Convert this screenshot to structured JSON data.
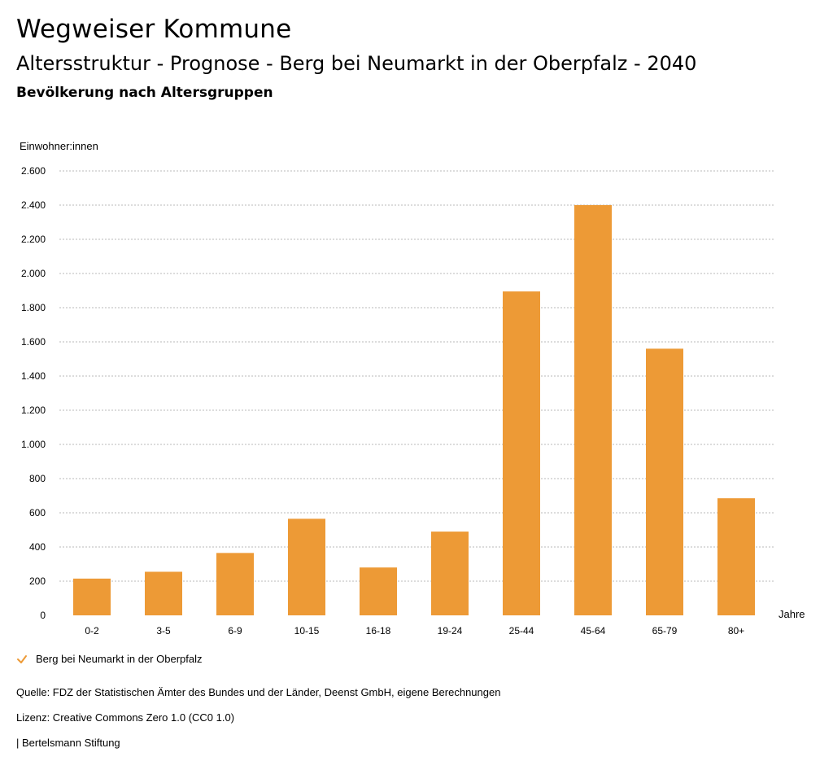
{
  "header": {
    "title": "Wegweiser Kommune",
    "subtitle": "Altersstruktur - Prognose - Berg bei Neumarkt in der Oberpfalz - 2040",
    "section": "Bevölkerung nach Altersgruppen"
  },
  "legend": {
    "label": "Berg bei Neumarkt in der Oberpfalz"
  },
  "footer": {
    "source": "Quelle: FDZ der Statistischen Ämter des Bundes und der Länder, Deenst GmbH, eigene Berechnungen",
    "license": "Lizenz: Creative Commons Zero 1.0 (CC0 1.0)",
    "publisher": "| Bertelsmann Stiftung"
  },
  "colors": {
    "bar": "#ed9a36",
    "grid": "#b8b8b8",
    "check": "#ed9a36"
  },
  "chart_data": {
    "type": "bar",
    "ylabel": "Einwohner:innen",
    "xlabel": "Jahre",
    "ylim": [
      0,
      2600
    ],
    "yticks": [
      0,
      200,
      400,
      600,
      800,
      1000,
      1200,
      1400,
      1600,
      1800,
      2000,
      2200,
      2400,
      2600
    ],
    "ytick_labels": [
      "0",
      "200",
      "400",
      "600",
      "800",
      "1.000",
      "1.200",
      "1.400",
      "1.600",
      "1.800",
      "2.000",
      "2.200",
      "2.400",
      "2.600"
    ],
    "grid": true,
    "categories": [
      "0-2",
      "3-5",
      "6-9",
      "10-15",
      "16-18",
      "19-24",
      "25-44",
      "45-64",
      "65-79",
      "80+"
    ],
    "series": [
      {
        "name": "Berg bei Neumarkt in der Oberpfalz",
        "values": [
          215,
          255,
          365,
          565,
          280,
          490,
          1895,
          2400,
          1560,
          685
        ]
      }
    ]
  }
}
